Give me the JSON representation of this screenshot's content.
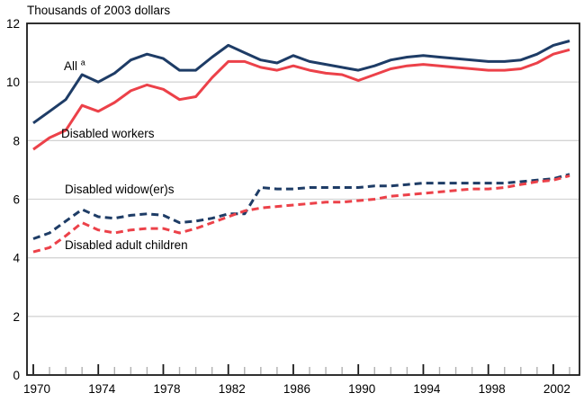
{
  "title": "Thousands of 2003 dollars",
  "chart_data": {
    "type": "line",
    "title": "Thousands of 2003 dollars",
    "x_start": 1970,
    "x_end": 2003,
    "x_major_ticks": [
      1970,
      1974,
      1978,
      1982,
      1986,
      1990,
      1994,
      1998,
      2002
    ],
    "ylim": [
      0,
      12
    ],
    "y_ticks": [
      12,
      10,
      8,
      6,
      4,
      2,
      0
    ],
    "grid_values": [
      2,
      4,
      6,
      8,
      10
    ],
    "grid_on": true,
    "legend_position": "inline-labels",
    "colors": {
      "navy": "#1e3c66",
      "red": "#ec4149",
      "grid": "#d4d4d4",
      "axis": "#1a1a1a",
      "minor_tick": "#b0b0b0",
      "text": "#000000"
    },
    "series": [
      {
        "name": "All",
        "superscript": "a",
        "color": "#1e3c66",
        "style": "solid",
        "values": [
          8.6,
          9.0,
          9.4,
          10.25,
          10.0,
          10.3,
          10.75,
          10.95,
          10.8,
          10.4,
          10.4,
          10.85,
          11.25,
          11.0,
          10.75,
          10.65,
          10.9,
          10.7,
          10.6,
          10.5,
          10.4,
          10.55,
          10.75,
          10.85,
          10.9,
          10.85,
          10.8,
          10.75,
          10.7,
          10.7,
          10.75,
          10.95,
          11.25,
          11.4
        ]
      },
      {
        "name": "Disabled workers",
        "superscript": "",
        "color": "#ec4149",
        "style": "solid",
        "values": [
          7.7,
          8.1,
          8.35,
          9.2,
          9.0,
          9.3,
          9.7,
          9.9,
          9.75,
          9.4,
          9.5,
          10.15,
          10.7,
          10.7,
          10.5,
          10.4,
          10.55,
          10.4,
          10.3,
          10.25,
          10.05,
          10.25,
          10.45,
          10.55,
          10.6,
          10.55,
          10.5,
          10.45,
          10.4,
          10.4,
          10.45,
          10.65,
          10.95,
          11.1
        ]
      },
      {
        "name": "Disabled widow(er)s",
        "superscript": "",
        "color": "#1e3c66",
        "style": "dashed",
        "values": [
          4.65,
          4.85,
          5.25,
          5.65,
          5.4,
          5.35,
          5.45,
          5.5,
          5.45,
          5.2,
          5.25,
          5.35,
          5.5,
          5.5,
          6.4,
          6.35,
          6.35,
          6.4,
          6.4,
          6.4,
          6.4,
          6.45,
          6.45,
          6.5,
          6.55,
          6.55,
          6.55,
          6.55,
          6.55,
          6.55,
          6.6,
          6.65,
          6.7,
          6.85
        ]
      },
      {
        "name": "Disabled adult children",
        "superscript": "",
        "color": "#ec4149",
        "style": "dashed",
        "values": [
          4.2,
          4.35,
          4.75,
          5.2,
          4.95,
          4.85,
          4.95,
          5.0,
          5.0,
          4.85,
          5.0,
          5.2,
          5.4,
          5.6,
          5.7,
          5.75,
          5.8,
          5.85,
          5.9,
          5.9,
          5.95,
          6.0,
          6.1,
          6.15,
          6.2,
          6.25,
          6.3,
          6.35,
          6.35,
          6.4,
          6.5,
          6.6,
          6.65,
          6.8
        ]
      }
    ]
  }
}
